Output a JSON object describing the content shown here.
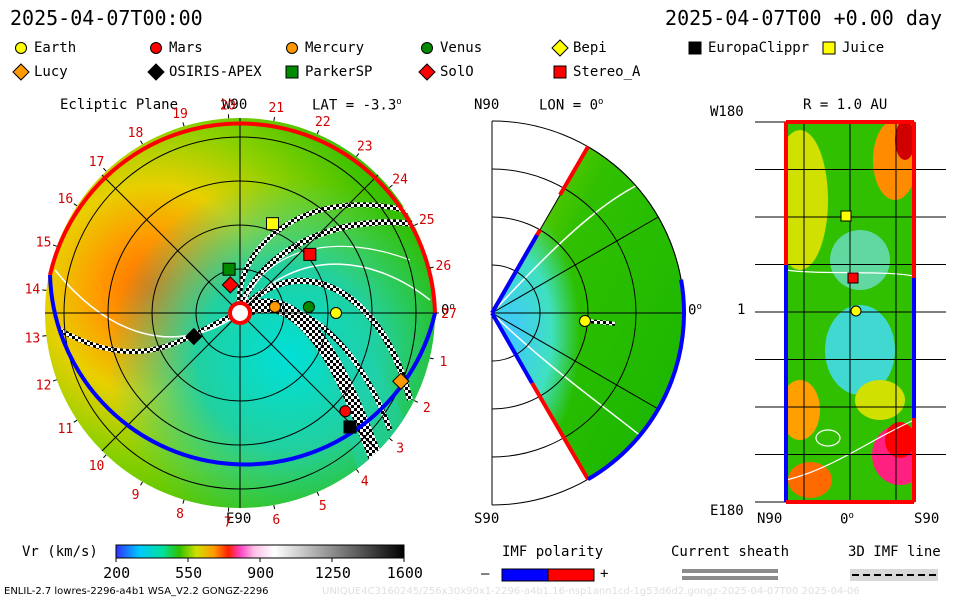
{
  "header": {
    "date_left": "2025-04-07T00:00",
    "date_right": "2025-04-07T00 +0.00 day"
  },
  "legend": [
    {
      "name": "Earth",
      "shape": "circle",
      "color": "#ffff00"
    },
    {
      "name": "Mars",
      "shape": "circle",
      "color": "#ff0000"
    },
    {
      "name": "Mercury",
      "shape": "circle",
      "color": "#ff9900"
    },
    {
      "name": "Venus",
      "shape": "circle",
      "color": "#008800"
    },
    {
      "name": "Bepi",
      "shape": "diamond",
      "color": "#ffff00"
    },
    {
      "name": "EuropaClippr",
      "shape": "square",
      "color": "#000000"
    },
    {
      "name": "Juice",
      "shape": "square",
      "color": "#ffff00"
    },
    {
      "name": "Lucy",
      "shape": "diamond",
      "color": "#ff9900"
    },
    {
      "name": "OSIRIS-APEX",
      "shape": "diamond",
      "color": "#000000"
    },
    {
      "name": "ParkerSP",
      "shape": "square",
      "color": "#008800"
    },
    {
      "name": "SolO",
      "shape": "diamond",
      "color": "#ff0000"
    },
    {
      "name": "Stereo_A",
      "shape": "square",
      "color": "#ff0000"
    }
  ],
  "ecliptic": {
    "title": "Ecliptic Plane",
    "lat_label": "LAT = -3.3",
    "lat_degree": "o",
    "top_label": "W90",
    "bottom_label": "E90",
    "right_label": "0",
    "right_degree": "o",
    "carrington_ticks": [
      "1",
      "2",
      "3",
      "4",
      "5",
      "6",
      "7",
      "8",
      "9",
      "10",
      "11",
      "12",
      "13",
      "14",
      "15",
      "16",
      "17",
      "18",
      "19",
      "20",
      "21",
      "22",
      "23",
      "24",
      "25",
      "26",
      "27"
    ]
  },
  "meridional": {
    "lon_label": "LON = 0",
    "lon_degree": "o",
    "top_label": "N90",
    "bottom_label": "S90",
    "right_label": "0",
    "right_degree": "o"
  },
  "radial": {
    "title": "R = 1.0 AU",
    "top_label": "W180",
    "mid_label": "1",
    "bottom_label": "E180",
    "x_left": "N90",
    "x_mid": "0",
    "x_mid_degree": "o",
    "x_right": "S90"
  },
  "colorbar": {
    "label": "Vr (km/s)",
    "ticks": [
      "200",
      "550",
      "900",
      "1250",
      "1600"
    ],
    "min": 200,
    "max": 1600
  },
  "imf": {
    "title": "IMF polarity",
    "minus": "–",
    "plus": "+"
  },
  "sheath": {
    "title": "Current sheath"
  },
  "imf3d": {
    "title": "3D IMF line"
  },
  "footer": {
    "left": "ENLIL-2.7 lowres-2296-a4b1 WSA_V2.2 GONGZ-2296",
    "right": "UNIQUE4C3160245/256x30x90x1-2296-a4b1.16-nsp1ann1cd-1g53d6d2.gongz-2025-04-07T00   2025-04-06"
  },
  "chart_data": {
    "type": "heatmap",
    "title": "",
    "quantity": "Vr (km/s)",
    "range": [
      200,
      1600
    ],
    "colorbar_ticks": [
      200,
      550,
      900,
      1250,
      1600
    ],
    "ecliptic_objects_deg_au": [
      {
        "name": "Earth",
        "lon_deg": 0,
        "r_au": 1.0
      },
      {
        "name": "Mercury",
        "lon_deg": 10,
        "r_au": 0.37
      },
      {
        "name": "Venus",
        "lon_deg": 5,
        "r_au": 0.72
      },
      {
        "name": "Juice",
        "lon_deg": 70,
        "r_au": 0.99
      },
      {
        "name": "ParkerSP",
        "lon_deg": 104,
        "r_au": 0.47
      },
      {
        "name": "SolO",
        "lon_deg": 109,
        "r_au": 0.31
      },
      {
        "name": "Stereo_A",
        "lon_deg": 40,
        "r_au": 0.95
      },
      {
        "name": "OSIRIS-APEX",
        "lon_deg": -153,
        "r_au": 0.54
      },
      {
        "name": "Mars",
        "lon_deg": -43,
        "r_au": 1.5
      },
      {
        "name": "EuropaClippr",
        "lon_deg": -46,
        "r_au": 1.65
      },
      {
        "name": "Lucy",
        "lon_deg": -23,
        "r_au": 1.82
      }
    ]
  }
}
